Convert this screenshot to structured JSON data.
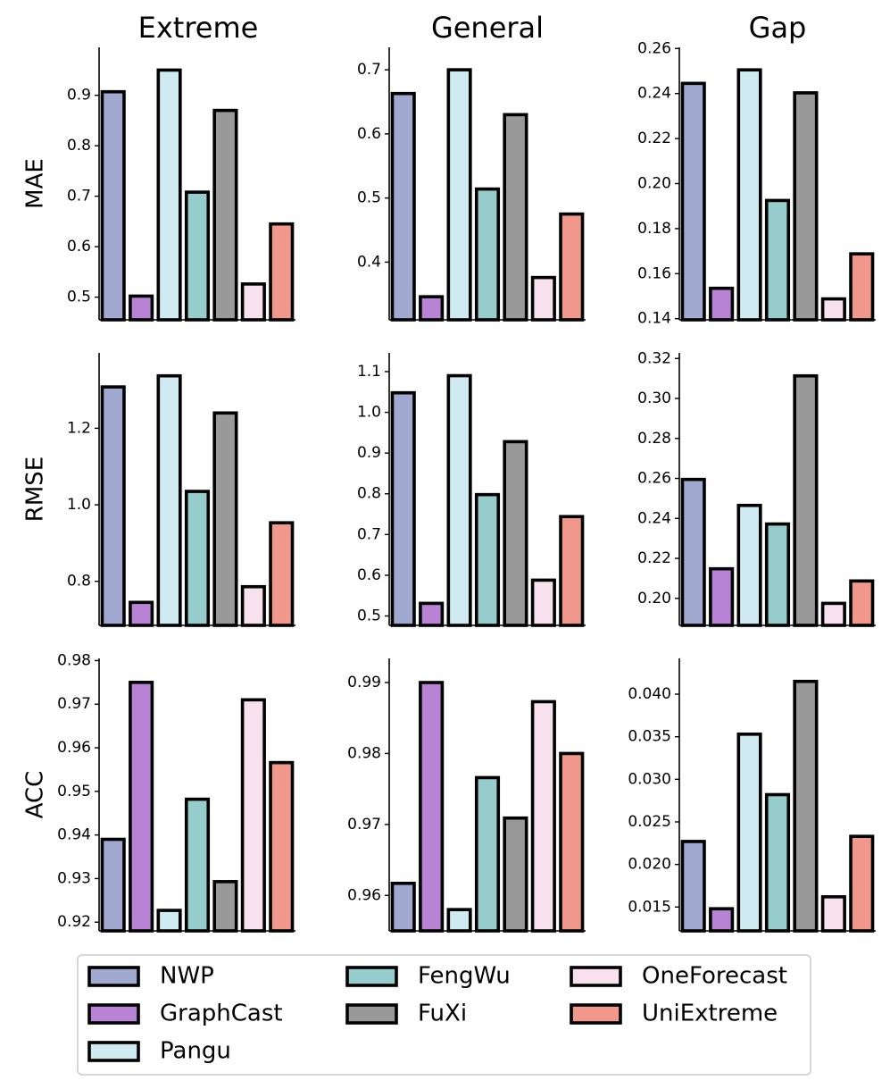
{
  "chart_data": {
    "type": "bar",
    "categories": [
      "NWP",
      "GraphCast",
      "Pangu",
      "FengWu",
      "FuXi",
      "OneForecast",
      "UniExtreme"
    ],
    "colors": [
      "#a1a9d0",
      "#b883d4",
      "#cfeaf1",
      "#96cccb",
      "#999999",
      "#f6e1ec",
      "#f0988c"
    ],
    "columns": [
      "Extreme",
      "General",
      "Gap"
    ],
    "rows": [
      "MAE",
      "RMSE",
      "ACC"
    ],
    "legend": {
      "position": "bottom",
      "labels": [
        "NWP",
        "GraphCast",
        "Pangu",
        "FengWu",
        "FuXi",
        "OneForecast",
        "UniExtreme"
      ]
    },
    "panels": [
      {
        "row": "MAE",
        "column": "Extreme",
        "ylim": [
          0.455,
          0.995
        ],
        "ticks": [
          0.5,
          0.6,
          0.7,
          0.8,
          0.9
        ],
        "tick_labels": [
          "0.5",
          "0.6",
          "0.7",
          "0.8",
          "0.9"
        ],
        "values": [
          0.907,
          0.502,
          0.95,
          0.708,
          0.87,
          0.526,
          0.645
        ]
      },
      {
        "row": "MAE",
        "column": "General",
        "ylim": [
          0.31,
          0.735
        ],
        "ticks": [
          0.4,
          0.5,
          0.6,
          0.7
        ],
        "tick_labels": [
          "0.4",
          "0.5",
          "0.6",
          "0.7"
        ],
        "values": [
          0.663,
          0.346,
          0.7,
          0.514,
          0.63,
          0.376,
          0.475
        ]
      },
      {
        "row": "MAE",
        "column": "Gap",
        "ylim": [
          0.1395,
          0.2605
        ],
        "ticks": [
          0.14,
          0.16,
          0.18,
          0.2,
          0.22,
          0.24,
          0.26
        ],
        "tick_labels": [
          "0.14",
          "0.16",
          "0.18",
          "0.20",
          "0.22",
          "0.24",
          "0.26"
        ],
        "values": [
          0.2445,
          0.1535,
          0.2505,
          0.1925,
          0.2403,
          0.1488,
          0.1688
        ]
      },
      {
        "row": "RMSE",
        "column": "Extreme",
        "ylim": [
          0.685,
          1.397
        ],
        "ticks": [
          0.8,
          1.0,
          1.2
        ],
        "tick_labels": [
          "0.8",
          "1.0",
          "1.2"
        ],
        "values": [
          1.308,
          0.745,
          1.337,
          1.035,
          1.24,
          0.786,
          0.953
        ]
      },
      {
        "row": "RMSE",
        "column": "General",
        "ylim": [
          0.477,
          1.146
        ],
        "ticks": [
          0.5,
          0.6,
          0.7,
          0.8,
          0.9,
          1.0,
          1.1
        ],
        "tick_labels": [
          "0.5",
          "0.6",
          "0.7",
          "0.8",
          "0.9",
          "1.0",
          "1.1"
        ],
        "values": [
          1.048,
          0.531,
          1.09,
          0.798,
          0.928,
          0.588,
          0.744
        ]
      },
      {
        "row": "RMSE",
        "column": "Gap",
        "ylim": [
          0.1865,
          0.3228
        ],
        "ticks": [
          0.2,
          0.22,
          0.24,
          0.26,
          0.28,
          0.3,
          0.32
        ],
        "tick_labels": [
          "0.20",
          "0.22",
          "0.24",
          "0.26",
          "0.28",
          "0.30",
          "0.32"
        ],
        "values": [
          0.2595,
          0.2148,
          0.2465,
          0.2372,
          0.3113,
          0.1975,
          0.2087
        ]
      },
      {
        "row": "ACC",
        "column": "Extreme",
        "ylim": [
          0.918,
          0.9805
        ],
        "ticks": [
          0.92,
          0.93,
          0.94,
          0.95,
          0.96,
          0.97,
          0.98
        ],
        "tick_labels": [
          "0.92",
          "0.93",
          "0.94",
          "0.95",
          "0.96",
          "0.97",
          "0.98"
        ],
        "values": [
          0.939,
          0.975,
          0.9227,
          0.9482,
          0.9293,
          0.971,
          0.9566
        ]
      },
      {
        "row": "ACC",
        "column": "General",
        "ylim": [
          0.955,
          0.9934
        ],
        "ticks": [
          0.96,
          0.97,
          0.98,
          0.99
        ],
        "tick_labels": [
          "0.96",
          "0.97",
          "0.98",
          "0.99"
        ],
        "values": [
          0.9617,
          0.99,
          0.958,
          0.9766,
          0.9709,
          0.9873,
          0.98
        ]
      },
      {
        "row": "ACC",
        "column": "Gap",
        "ylim": [
          0.0122,
          0.0442
        ],
        "ticks": [
          0.015,
          0.02,
          0.025,
          0.03,
          0.035,
          0.04
        ],
        "tick_labels": [
          "0.015",
          "0.020",
          "0.025",
          "0.030",
          "0.035",
          "0.040"
        ],
        "values": [
          0.0227,
          0.0148,
          0.0353,
          0.0282,
          0.0415,
          0.0162,
          0.0233
        ]
      }
    ]
  }
}
